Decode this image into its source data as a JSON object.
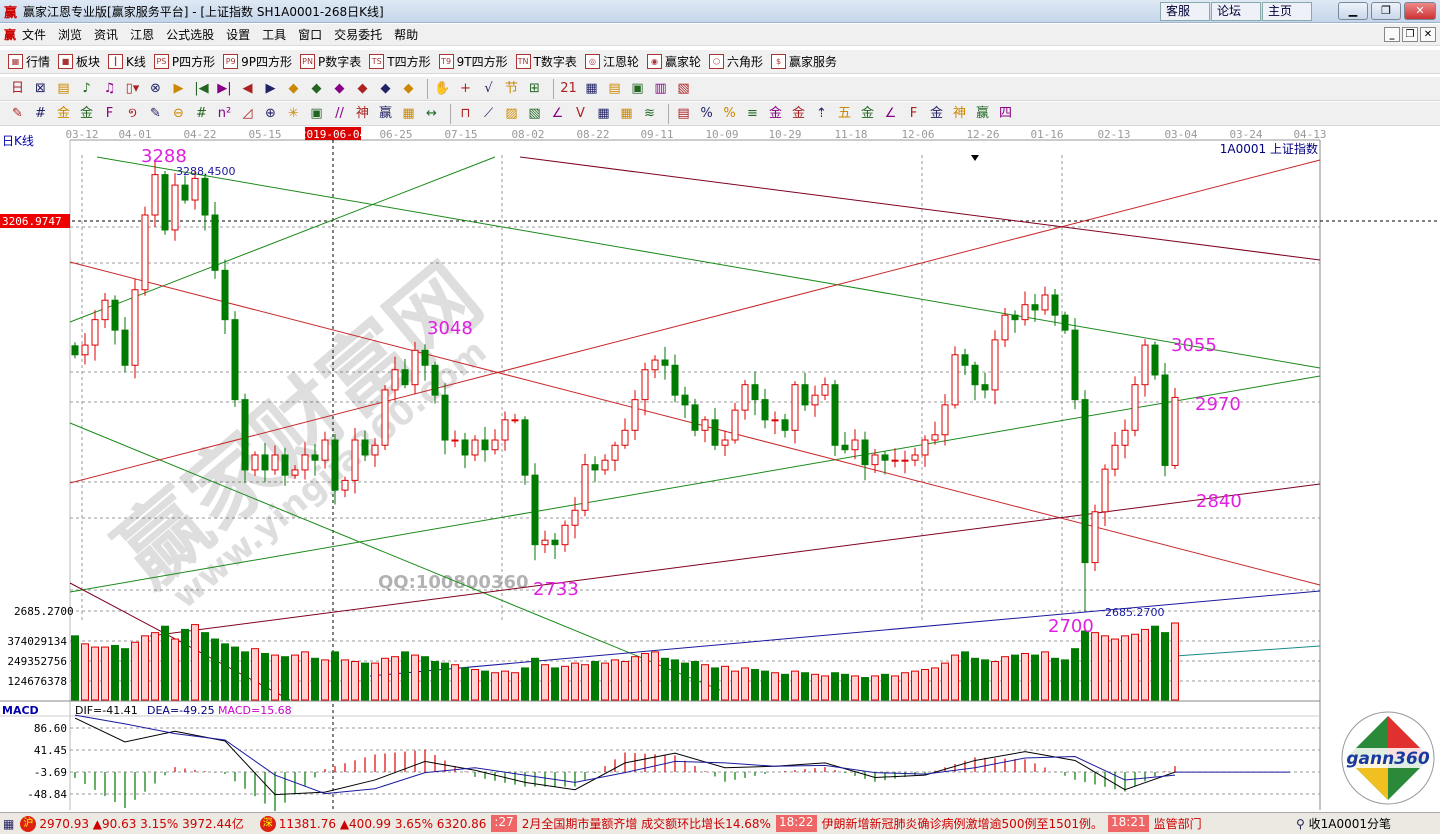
{
  "window": {
    "logo": "赢",
    "title": "赢家江恩专业版[赢家服务平台] - [上证指数  SH1A0001-268日K线]",
    "links": [
      "客服",
      "论坛",
      "主页"
    ],
    "controls": [
      "minimize",
      "restore",
      "close"
    ]
  },
  "menu": {
    "logo": "赢",
    "items": [
      "文件",
      "浏览",
      "资讯",
      "江恩",
      "公式选股",
      "设置",
      "工具",
      "窗口",
      "交易委托",
      "帮助"
    ]
  },
  "toolbar1": [
    {
      "icon": "grid-table-icon",
      "tag": "▦",
      "label": "行情"
    },
    {
      "icon": "blocks-icon",
      "tag": "■",
      "label": "板块"
    },
    {
      "icon": "kline-icon",
      "tag": "┃",
      "label": "K线"
    },
    {
      "icon": "ps-icon",
      "tag": "PS",
      "label": "P四方形"
    },
    {
      "icon": "p9-icon",
      "tag": "P9",
      "label": "9P四方形"
    },
    {
      "icon": "pn-icon",
      "tag": "PN",
      "label": "P数字表"
    },
    {
      "icon": "ts-icon",
      "tag": "TS",
      "label": "T四方形"
    },
    {
      "icon": "t9-icon",
      "tag": "T9",
      "label": "9T四方形"
    },
    {
      "icon": "tn-icon",
      "tag": "TN",
      "label": "T数字表"
    },
    {
      "icon": "gann-wheel-icon",
      "tag": "◎",
      "label": "江恩轮"
    },
    {
      "icon": "winner-wheel-icon",
      "tag": "◉",
      "label": "赢家轮"
    },
    {
      "icon": "hexagon-icon",
      "tag": "⬡",
      "label": "六角形"
    },
    {
      "icon": "dollar-icon",
      "tag": "$",
      "label": "赢家服务"
    }
  ],
  "toolbar2": [
    "日▾",
    "⊠",
    "▤",
    "♪",
    "♫",
    "▯▾",
    "⊗",
    "▶",
    "|◀",
    "▶|",
    "◀",
    "▶",
    "◆",
    "◆",
    "◆",
    "◆",
    "◆",
    "◆",
    "|",
    "✋",
    "+",
    "√",
    "节",
    "⊞",
    "|",
    "21",
    "▦",
    "▤",
    "▣",
    "▥",
    "▧"
  ],
  "toolbar3": [
    "✎",
    "#",
    "金",
    "金",
    "F",
    "១",
    "✎",
    "⊖",
    "#",
    "n²",
    "◿",
    "⊕",
    "✳",
    "▣",
    "//",
    "神",
    "赢",
    "▦",
    "↔",
    "|",
    "⊓",
    "⟋",
    "▨",
    "▧",
    "∠",
    "V",
    "▦",
    "▦",
    "≋",
    "|",
    "▤",
    "%",
    "%",
    "≡",
    "金",
    "金",
    "⇡",
    "五",
    "金",
    "∠",
    "F",
    "金",
    "神",
    "赢",
    "四"
  ],
  "chart": {
    "period_label": "日K线",
    "symbol_label": "1A0001  上证指数",
    "cursor_date": "2019-06-04",
    "cursor_price": "3206.9747",
    "date_ticks": [
      "03-12",
      "04-01",
      "04-22",
      "05-15",
      "2019-06-04",
      "06-25",
      "07-15",
      "08-02",
      "08-22",
      "09-11",
      "10-09",
      "10-29",
      "11-18",
      "12-06",
      "12-26",
      "01-16",
      "02-13",
      "03-04",
      "03-24",
      "04-13"
    ],
    "price_axis_labels": [
      "3206.9747",
      "2685.2700"
    ],
    "high_label": "3288.4500",
    "low_label": "2685.2700",
    "annotations": [
      "3288",
      "3048",
      "3055",
      "2970",
      "2840",
      "2733",
      "2700"
    ],
    "annotation_color": "#e020e0",
    "watermark": {
      "main": "赢家财富网",
      "url": "www.yingjia360.com",
      "qq": "QQ:100800360"
    },
    "up_color": "#e00000",
    "down_color": "#007a00"
  },
  "chart_data": {
    "type": "candlestick",
    "first_open": 3040,
    "close": [
      3028,
      3041,
      3075,
      3101,
      3061,
      3014,
      3115,
      3215,
      3269,
      3195,
      3255,
      3235,
      3264,
      3215,
      3141,
      3075,
      2968,
      2874,
      2894,
      2874,
      2894,
      2867,
      2874,
      2894,
      2887,
      2914,
      2847,
      2860,
      2914,
      2894,
      2907,
      2981,
      3008,
      2988,
      3034,
      3014,
      2974,
      2914,
      2914,
      2894,
      2914,
      2901,
      2914,
      2941,
      2941,
      2867,
      2774,
      2780,
      2774,
      2800,
      2820,
      2881,
      2874,
      2887,
      2907,
      2927,
      2968,
      3008,
      3021,
      3014,
      2974,
      2961,
      2927,
      2941,
      2907,
      2914,
      2954,
      2988,
      2968,
      2941,
      2941,
      2927,
      2988,
      2961,
      2974,
      2988,
      2907,
      2901,
      2914,
      2881,
      2894,
      2887,
      2887,
      2887,
      2894,
      2914,
      2921,
      2961,
      3028,
      3014,
      2988,
      2981,
      3048,
      3081,
      3075,
      3095,
      3088,
      3108,
      3081,
      3061,
      2968,
      2750,
      2818,
      2875,
      2907,
      2927,
      2988,
      3041,
      3001,
      2880,
      2971
    ],
    "high_max": 3288.45,
    "low_min": 2685.27,
    "volume": [
      400000000,
      350000000,
      330000000,
      330000000,
      340000000,
      320000000,
      360000000,
      400000000,
      420000000,
      460000000,
      380000000,
      440000000,
      470000000,
      420000000,
      380000000,
      350000000,
      330000000,
      300000000,
      320000000,
      290000000,
      280000000,
      270000000,
      280000000,
      300000000,
      260000000,
      250000000,
      300000000,
      250000000,
      240000000,
      230000000,
      230000000,
      260000000,
      270000000,
      300000000,
      280000000,
      270000000,
      240000000,
      230000000,
      220000000,
      200000000,
      190000000,
      180000000,
      170000000,
      180000000,
      170000000,
      200000000,
      260000000,
      220000000,
      200000000,
      210000000,
      230000000,
      220000000,
      240000000,
      230000000,
      250000000,
      240000000,
      270000000,
      290000000,
      300000000,
      260000000,
      250000000,
      230000000,
      240000000,
      220000000,
      200000000,
      210000000,
      180000000,
      200000000,
      190000000,
      180000000,
      170000000,
      160000000,
      180000000,
      170000000,
      160000000,
      150000000,
      170000000,
      160000000,
      150000000,
      140000000,
      150000000,
      160000000,
      150000000,
      170000000,
      180000000,
      190000000,
      200000000,
      230000000,
      280000000,
      300000000,
      260000000,
      250000000,
      240000000,
      270000000,
      280000000,
      290000000,
      280000000,
      300000000,
      260000000,
      250000000,
      320000000,
      430000000,
      420000000,
      400000000,
      380000000,
      400000000,
      410000000,
      440000000,
      460000000,
      420000000,
      480000000
    ],
    "volume_axis_labels": [
      "374029134",
      "249352756",
      "124676378"
    ],
    "macd": {
      "title": "MACD",
      "dif_label": "DIF=-41.41",
      "dea_label": "DEA=-49.25",
      "macd_label": "MACD=15.68",
      "axis_labels": [
        "86.60",
        "41.45",
        "-3.69",
        "-48.84"
      ],
      "dif": [
        107,
        58,
        80,
        60,
        -50,
        -45,
        -20,
        18,
        0,
        -25,
        -40,
        15,
        35,
        5,
        8,
        15,
        -15,
        -10,
        20,
        38,
        20,
        -40,
        -4
      ],
      "dea": [
        113,
        95,
        75,
        62,
        -10,
        -48,
        -38,
        -5,
        5,
        -10,
        -25,
        -5,
        18,
        15,
        8,
        10,
        -5,
        -8,
        5,
        25,
        28,
        -20,
        -10
      ],
      "sample_step": 5
    }
  },
  "status": {
    "sh_badge": "沪",
    "sh_quote": "2970.93 ▲90.63 3.15% 3972.44亿",
    "sz_badge": "深",
    "sz_quote": "11381.76 ▲400.99 3.65% 6320.86",
    "news": [
      {
        "time": ":27",
        "text": "2月全国期市量额齐增 成交额环比增长14.68%"
      },
      {
        "time": "18:22",
        "text": "伊朗新增新冠肺炎确诊病例激增逾500例至1501例。"
      },
      {
        "time": "18:21",
        "text": "监管部门"
      }
    ],
    "right_text": "收1A0001分笔"
  },
  "logo": {
    "text": "gann360"
  }
}
